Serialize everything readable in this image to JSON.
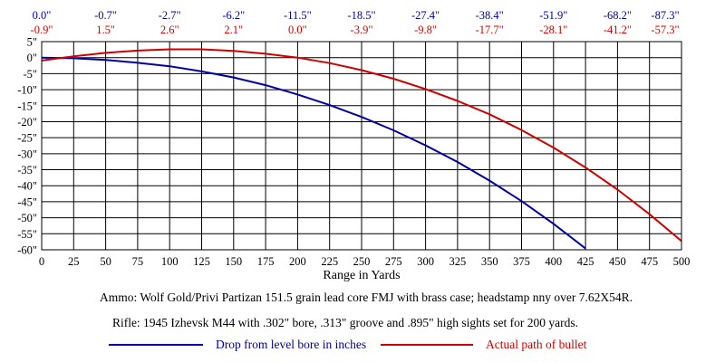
{
  "chart_data": {
    "type": "line",
    "title": "",
    "xlabel": "Range in Yards",
    "ylabel": "",
    "xlim": [
      0,
      500
    ],
    "ylim": [
      -60,
      5
    ],
    "grid": true,
    "legend_position": "bottom",
    "x_ticks": [
      0,
      25,
      50,
      75,
      100,
      125,
      150,
      175,
      200,
      225,
      250,
      275,
      300,
      325,
      350,
      375,
      400,
      425,
      450,
      475,
      500
    ],
    "x_tick_labels": [
      "0",
      "25",
      "50",
      "75",
      "100",
      "125",
      "150",
      "175",
      "200",
      "225",
      "250",
      "275",
      "300",
      "325",
      "350",
      "375",
      "400",
      "425",
      "450",
      "475",
      "500"
    ],
    "y_ticks": [
      5,
      0,
      -5,
      -10,
      -15,
      -20,
      -25,
      -30,
      -35,
      -40,
      -45,
      -50,
      -55,
      -60
    ],
    "y_tick_labels": [
      "5\"",
      "0\"",
      "-5\"",
      "-10\"",
      "-15\"",
      "-20\"",
      "-25\"",
      "-30\"",
      "-35\"",
      "-40\"",
      "-45\"",
      "-50\"",
      "-55\"",
      "-60\""
    ],
    "top_label_x": [
      0,
      50,
      100,
      150,
      200,
      250,
      300,
      350,
      400,
      450,
      500
    ],
    "drop_labels": [
      "0.0\"",
      "-0.7\"",
      "-2.7\"",
      "-6.2\"",
      "-11.5\"",
      "-18.5\"",
      "-27.4\"",
      "-38.4\"",
      "-51.9\"",
      "-68.2\"",
      "-87.3\""
    ],
    "path_labels": [
      "-0.9\"",
      "1.5\"",
      "2.6\"",
      "2.1\"",
      "0.0\"",
      "-3.9\"",
      "-9.8\"",
      "-17.7\"",
      "-28.1\"",
      "-41.2\"",
      "-57.3\""
    ],
    "series": [
      {
        "name": "Drop from level bore in inches",
        "color": "#0000a0",
        "x": [
          0,
          25,
          50,
          75,
          100,
          125,
          150,
          175,
          200,
          225,
          250,
          275,
          300,
          325,
          350,
          375,
          400,
          425
        ],
        "values": [
          0,
          -0.2,
          -0.7,
          -1.6,
          -2.7,
          -4.3,
          -6.2,
          -8.6,
          -11.5,
          -14.8,
          -18.5,
          -22.7,
          -27.4,
          -32.6,
          -38.4,
          -44.8,
          -51.9,
          -59.6
        ]
      },
      {
        "name": "Actual path of bullet",
        "color": "#d00000",
        "x": [
          0,
          25,
          50,
          75,
          100,
          125,
          150,
          175,
          200,
          225,
          250,
          275,
          300,
          325,
          350,
          375,
          400,
          425,
          450,
          475,
          500
        ],
        "values": [
          -0.9,
          0.4,
          1.5,
          2.2,
          2.6,
          2.6,
          2.1,
          1.2,
          0.0,
          -1.7,
          -3.9,
          -6.6,
          -9.8,
          -13.5,
          -17.7,
          -22.6,
          -28.1,
          -34.3,
          -41.2,
          -48.9,
          -57.3
        ]
      }
    ]
  },
  "notes": {
    "ammo": "Ammo:  Wolf Gold/Privi Partizan 151.5 grain lead core FMJ with brass case; headstamp nny over 7.62X54R.",
    "rifle": "Rifle:  1945 Izhevsk M44 with .302\" bore, .313\" groove and .895\" high sights set for 200 yards."
  }
}
